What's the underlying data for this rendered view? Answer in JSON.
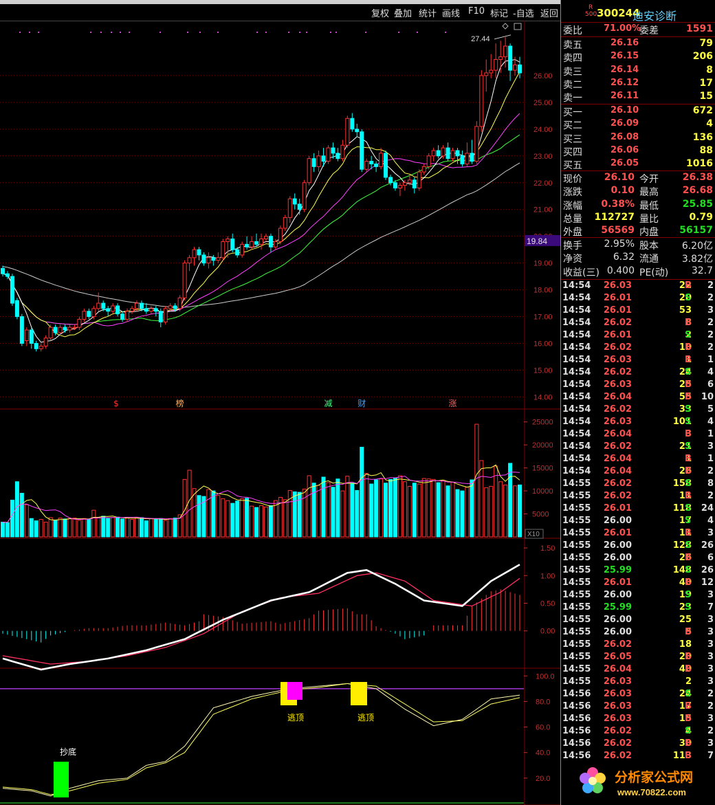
{
  "toolbar": {
    "buttons": [
      "复权",
      "叠加",
      "统计",
      "画线",
      "F10",
      "标记",
      "-自选",
      "返回"
    ]
  },
  "stock": {
    "badge_top": "R",
    "badge_bottom": "500",
    "code": "300244",
    "name": "迪安诊断"
  },
  "weibi": {
    "label1": "委比",
    "value1": "71.00%",
    "label2": "委差",
    "value2": "1591"
  },
  "asks": [
    {
      "label": "卖五",
      "price": "26.16",
      "vol": "79"
    },
    {
      "label": "卖四",
      "price": "26.15",
      "vol": "206"
    },
    {
      "label": "卖三",
      "price": "26.14",
      "vol": "8"
    },
    {
      "label": "卖二",
      "price": "26.12",
      "vol": "17"
    },
    {
      "label": "卖一",
      "price": "26.11",
      "vol": "15"
    }
  ],
  "bids": [
    {
      "label": "买一",
      "price": "26.10",
      "vol": "672"
    },
    {
      "label": "买二",
      "price": "26.09",
      "vol": "4"
    },
    {
      "label": "买三",
      "price": "26.08",
      "vol": "136"
    },
    {
      "label": "买四",
      "price": "26.06",
      "vol": "88"
    },
    {
      "label": "买五",
      "price": "26.05",
      "vol": "1016"
    }
  ],
  "quote": [
    {
      "l1": "现价",
      "v1": "26.10",
      "c1": "#ff5050",
      "l2": "今开",
      "v2": "26.38",
      "c2": "#ff5050"
    },
    {
      "l1": "涨跌",
      "v1": "0.10",
      "c1": "#ff5050",
      "l2": "最高",
      "v2": "26.68",
      "c2": "#ff5050"
    },
    {
      "l1": "涨幅",
      "v1": "0.38%",
      "c1": "#ff5050",
      "l2": "最低",
      "v2": "25.85",
      "c2": "#22dd22"
    },
    {
      "l1": "总量",
      "v1": "112727",
      "c1": "#ffff40",
      "l2": "量比",
      "v2": "0.79",
      "c2": "#ffff40"
    },
    {
      "l1": "外盘",
      "v1": "56569",
      "c1": "#ff5050",
      "l2": "内盘",
      "v2": "56157",
      "c2": "#22dd22"
    }
  ],
  "fundamentals": [
    {
      "l1": "换手",
      "v1": "2.95%",
      "l2": "股本",
      "v2": "6.20亿"
    },
    {
      "l1": "净资",
      "v1": "6.32",
      "l2": "流通",
      "v2": "3.82亿"
    },
    {
      "l1": "收益(三)",
      "v1": "0.400",
      "l2": "PE(动)",
      "v2": "32.7"
    }
  ],
  "ticks": [
    [
      "14:54",
      "26.03",
      "22",
      "B",
      "2"
    ],
    [
      "14:54",
      "26.01",
      "20",
      "S",
      "2"
    ],
    [
      "14:54",
      "26.01",
      "53",
      "",
      "3"
    ],
    [
      "14:54",
      "26.02",
      "8",
      "B",
      "2"
    ],
    [
      "14:54",
      "26.01",
      "2",
      "S",
      "2"
    ],
    [
      "14:54",
      "26.02",
      "10",
      "B",
      "2"
    ],
    [
      "14:54",
      "26.03",
      "1",
      "B",
      "1"
    ],
    [
      "14:54",
      "26.02",
      "24",
      "S",
      "4"
    ],
    [
      "14:54",
      "26.03",
      "25",
      "B",
      "6"
    ],
    [
      "14:54",
      "26.04",
      "55",
      "B",
      "10"
    ],
    [
      "14:54",
      "26.02",
      "33",
      "S",
      "5"
    ],
    [
      "14:54",
      "26.03",
      "101",
      "S",
      "4"
    ],
    [
      "14:54",
      "26.04",
      "3",
      "B",
      "1"
    ],
    [
      "14:54",
      "26.02",
      "21",
      "S",
      "3"
    ],
    [
      "14:54",
      "26.04",
      "1",
      "B",
      "1"
    ],
    [
      "14:54",
      "26.04",
      "26",
      "B",
      "2"
    ],
    [
      "14:55",
      "26.02",
      "158",
      "S",
      "8"
    ],
    [
      "14:55",
      "26.02",
      "11",
      "B",
      "2"
    ],
    [
      "14:55",
      "26.01",
      "118",
      "S",
      "24"
    ],
    [
      "14:55",
      "26.00",
      "17",
      "S",
      "4"
    ],
    [
      "14:55",
      "26.01",
      "11",
      "B",
      "3"
    ],
    [
      "14:55",
      "26.00",
      "128",
      "S",
      "26"
    ],
    [
      "14:55",
      "26.00",
      "26",
      "B",
      "6"
    ],
    [
      "14:55",
      "25.99",
      "148",
      "S",
      "26"
    ],
    [
      "14:55",
      "26.01",
      "40",
      "B",
      "12"
    ],
    [
      "14:55",
      "26.00",
      "19",
      "S",
      "3"
    ],
    [
      "14:55",
      "25.99",
      "23",
      "S",
      "7"
    ],
    [
      "14:55",
      "26.00",
      "25",
      "",
      "3"
    ],
    [
      "14:55",
      "26.00",
      "5",
      "B",
      "3"
    ],
    [
      "14:55",
      "26.02",
      "18",
      "",
      "3"
    ],
    [
      "14:55",
      "26.05",
      "20",
      "B",
      "3"
    ],
    [
      "14:55",
      "26.04",
      "40",
      "B",
      "3"
    ],
    [
      "14:55",
      "26.03",
      "2",
      "",
      "3"
    ],
    [
      "14:56",
      "26.03",
      "24",
      "S",
      "2"
    ],
    [
      "14:56",
      "26.03",
      "17",
      "B",
      "2"
    ],
    [
      "14:56",
      "26.03",
      "15",
      "B",
      "3"
    ],
    [
      "14:56",
      "26.02",
      "4",
      "S",
      "2"
    ],
    [
      "14:56",
      "26.02",
      "30",
      "B",
      "3"
    ],
    [
      "14:56",
      "26.02",
      "113",
      "B",
      "7"
    ]
  ],
  "colors": {
    "up": "#ff3232",
    "down": "#00ffff",
    "ma5": "#ffffff",
    "ma10": "#ffff50",
    "ma20": "#ff40ff",
    "ma30": "#40ff40",
    "ma60": "#cccccc",
    "grid": "#800000",
    "axis_text": "#c03030",
    "current_bg": "#3a0a7a"
  },
  "chart_data": [
    {
      "type": "candlestick",
      "title": "",
      "ylim": [
        13.6,
        28.0
      ],
      "yticks": [
        "26.00",
        "25.00",
        "24.00",
        "23.00",
        "22.00",
        "21.00",
        "20.00",
        "19.00",
        "18.00",
        "17.00",
        "16.00",
        "15.00",
        "14.00"
      ],
      "current_price_label": "19.84",
      "high_annotation": "27.44",
      "event_markers": [
        {
          "index": 24,
          "text": "$"
        },
        {
          "index": 37,
          "text": "榜"
        },
        {
          "index": 68,
          "text": "减"
        },
        {
          "index": 75,
          "text": "财"
        },
        {
          "index": 94,
          "text": "涨"
        }
      ],
      "candles": [
        [
          18.8,
          18.6,
          18.9,
          18.5
        ],
        [
          18.6,
          18.5,
          18.7,
          18.4
        ],
        [
          18.5,
          17.5,
          18.6,
          17.4
        ],
        [
          17.6,
          17.0,
          17.7,
          16.9
        ],
        [
          17.0,
          16.0,
          17.1,
          15.9
        ],
        [
          16.1,
          16.5,
          16.6,
          15.9
        ],
        [
          16.5,
          16.0,
          16.6,
          15.8
        ],
        [
          16.0,
          15.8,
          16.1,
          15.7
        ],
        [
          15.8,
          15.9,
          16.0,
          15.7
        ],
        [
          15.9,
          16.2,
          16.3,
          15.8
        ],
        [
          16.2,
          16.6,
          16.7,
          16.1
        ],
        [
          16.6,
          16.4,
          16.7,
          16.3
        ],
        [
          16.4,
          16.6,
          16.7,
          16.3
        ],
        [
          16.6,
          16.5,
          16.7,
          16.4
        ],
        [
          16.5,
          16.6,
          16.7,
          16.4
        ],
        [
          16.6,
          16.6,
          16.7,
          16.5
        ],
        [
          16.6,
          16.9,
          17.0,
          16.5
        ],
        [
          16.9,
          17.2,
          17.3,
          16.8
        ],
        [
          17.2,
          17.0,
          17.3,
          16.9
        ],
        [
          17.0,
          17.3,
          17.4,
          16.9
        ],
        [
          17.3,
          17.5,
          17.9,
          17.2
        ],
        [
          17.5,
          17.3,
          17.6,
          17.2
        ],
        [
          17.3,
          17.2,
          17.4,
          17.0
        ],
        [
          17.2,
          17.4,
          17.5,
          17.1
        ],
        [
          17.4,
          17.1,
          17.5,
          17.0
        ],
        [
          17.1,
          16.9,
          17.2,
          16.8
        ],
        [
          16.9,
          17.2,
          17.3,
          16.8
        ],
        [
          17.2,
          17.3,
          17.4,
          17.1
        ],
        [
          17.3,
          17.5,
          17.6,
          17.2
        ],
        [
          17.5,
          17.3,
          17.6,
          17.2
        ],
        [
          17.3,
          17.2,
          17.5,
          17.1
        ],
        [
          17.2,
          17.3,
          17.4,
          17.1
        ],
        [
          17.3,
          17.2,
          17.4,
          17.0
        ],
        [
          17.2,
          16.8,
          17.3,
          16.6
        ],
        [
          16.8,
          17.3,
          17.4,
          16.7
        ],
        [
          17.3,
          17.4,
          17.5,
          17.2
        ],
        [
          17.4,
          17.3,
          17.5,
          17.2
        ],
        [
          17.3,
          17.7,
          17.8,
          17.2
        ],
        [
          17.7,
          19.0,
          19.1,
          17.6
        ],
        [
          19.0,
          19.2,
          19.3,
          18.7
        ],
        [
          19.2,
          19.5,
          19.6,
          18.9
        ],
        [
          19.5,
          19.3,
          19.6,
          19.1
        ],
        [
          19.3,
          19.0,
          19.4,
          18.9
        ],
        [
          19.0,
          19.2,
          19.4,
          18.8
        ],
        [
          19.2,
          19.1,
          19.3,
          18.9
        ],
        [
          19.1,
          19.2,
          19.4,
          19.0
        ],
        [
          19.2,
          19.8,
          19.9,
          19.1
        ],
        [
          19.8,
          19.9,
          20.0,
          19.2
        ],
        [
          19.9,
          19.5,
          20.1,
          19.4
        ],
        [
          19.5,
          19.3,
          19.6,
          19.2
        ],
        [
          19.3,
          19.7,
          19.8,
          19.2
        ],
        [
          19.7,
          19.6,
          20.0,
          19.5
        ],
        [
          19.6,
          19.8,
          20.0,
          19.5
        ],
        [
          19.8,
          19.7,
          20.1,
          19.6
        ],
        [
          19.7,
          19.9,
          20.1,
          19.5
        ],
        [
          19.9,
          20.0,
          20.1,
          19.8
        ],
        [
          20.0,
          19.6,
          20.1,
          19.4
        ],
        [
          19.6,
          19.8,
          19.9,
          19.5
        ],
        [
          19.8,
          20.3,
          20.4,
          19.7
        ],
        [
          20.3,
          20.7,
          20.8,
          20.2
        ],
        [
          20.7,
          21.4,
          21.5,
          20.5
        ],
        [
          21.4,
          21.2,
          21.6,
          21.0
        ],
        [
          21.2,
          21.0,
          21.4,
          20.8
        ],
        [
          21.0,
          22.0,
          22.1,
          20.9
        ],
        [
          22.0,
          22.9,
          23.0,
          21.9
        ],
        [
          22.9,
          22.6,
          23.1,
          22.4
        ],
        [
          22.6,
          23.0,
          23.2,
          22.4
        ],
        [
          23.0,
          22.8,
          23.3,
          22.6
        ],
        [
          22.8,
          23.3,
          23.4,
          22.7
        ],
        [
          23.3,
          23.1,
          23.5,
          22.9
        ],
        [
          23.1,
          22.9,
          23.3,
          22.8
        ],
        [
          22.9,
          23.4,
          23.6,
          22.8
        ],
        [
          23.4,
          24.4,
          24.5,
          23.3
        ],
        [
          24.4,
          24.0,
          24.6,
          23.9
        ],
        [
          24.0,
          23.9,
          24.2,
          23.7
        ],
        [
          23.9,
          22.5,
          24.0,
          22.4
        ],
        [
          22.5,
          22.8,
          22.9,
          22.4
        ],
        [
          22.8,
          22.7,
          23.0,
          22.5
        ],
        [
          22.7,
          22.6,
          22.8,
          22.4
        ],
        [
          22.6,
          23.1,
          23.3,
          22.5
        ],
        [
          23.1,
          22.2,
          23.2,
          22.1
        ],
        [
          22.2,
          22.0,
          22.3,
          21.9
        ],
        [
          22.0,
          21.8,
          22.1,
          21.7
        ],
        [
          21.8,
          21.9,
          22.0,
          21.5
        ],
        [
          21.9,
          22.0,
          22.1,
          21.7
        ],
        [
          22.0,
          22.1,
          22.3,
          21.9
        ],
        [
          22.1,
          21.8,
          22.2,
          21.6
        ],
        [
          21.8,
          22.4,
          22.5,
          21.7
        ],
        [
          22.4,
          22.6,
          22.7,
          22.3
        ],
        [
          22.6,
          23.0,
          23.1,
          22.5
        ],
        [
          23.0,
          23.2,
          23.3,
          22.8
        ],
        [
          23.2,
          23.0,
          23.4,
          22.9
        ],
        [
          23.0,
          23.3,
          23.4,
          22.9
        ],
        [
          23.3,
          22.9,
          23.5,
          22.8
        ],
        [
          22.9,
          23.2,
          23.3,
          22.8
        ],
        [
          23.2,
          23.0,
          23.3,
          22.7
        ],
        [
          23.0,
          22.7,
          23.2,
          22.6
        ],
        [
          22.7,
          23.1,
          23.5,
          22.6
        ],
        [
          23.1,
          22.8,
          23.6,
          22.7
        ],
        [
          22.8,
          24.1,
          24.3,
          22.7
        ],
        [
          24.1,
          26.0,
          26.2,
          23.9
        ],
        [
          26.0,
          26.1,
          26.6,
          25.4
        ],
        [
          26.1,
          26.2,
          26.8,
          25.9
        ],
        [
          26.2,
          26.6,
          27.2,
          25.9
        ],
        [
          26.6,
          26.7,
          27.3,
          26.1
        ],
        [
          26.7,
          27.1,
          27.44,
          26.3
        ],
        [
          27.1,
          26.2,
          27.2,
          25.8
        ],
        [
          26.2,
          26.4,
          26.7,
          26.0
        ],
        [
          26.4,
          26.1,
          26.7,
          25.9
        ]
      ]
    },
    {
      "type": "bar",
      "title": "",
      "ylim": [
        0,
        27500
      ],
      "yticks": [
        "25000",
        "20000",
        "15000",
        "10000",
        "5000"
      ],
      "unit_label": "X10",
      "values": [
        3200,
        3100,
        8000,
        12000,
        9500,
        7000,
        4000,
        3500,
        3800,
        3200,
        4200,
        3600,
        4100,
        3900,
        4000,
        4100,
        3600,
        4000,
        3800,
        5800,
        4200,
        4500,
        4000,
        4200,
        4300,
        3900,
        4100,
        3800,
        4200,
        4200,
        3500,
        4000,
        3800,
        4000,
        3600,
        4000,
        4100,
        4800,
        12500,
        14500,
        10500,
        9000,
        8800,
        10300,
        10000,
        9000,
        8300,
        7900,
        7300,
        7800,
        8300,
        8400,
        6700,
        6400,
        6800,
        6500,
        6800,
        7900,
        8600,
        8100,
        10100,
        9800,
        9700,
        10400,
        13300,
        11700,
        11200,
        13000,
        11800,
        10800,
        12600,
        10000,
        13200,
        11700,
        10100,
        19500,
        13800,
        11500,
        12400,
        12600,
        11700,
        12500,
        12800,
        13300,
        12000,
        11000,
        11700,
        11500,
        12700,
        12600,
        12500,
        11800,
        12300,
        11100,
        11900,
        10300,
        10000,
        10800,
        12400,
        24500,
        16600,
        10700,
        11000,
        15400,
        12000,
        11300,
        16000,
        11100,
        11300
      ]
    },
    {
      "type": "line",
      "title": "",
      "ylim": [
        -0.65,
        1.65
      ],
      "yticks": [
        "1.50",
        "1.00",
        "0.50",
        "0.00"
      ],
      "series_note": "",
      "dif_points": [
        [
          0,
          -0.5
        ],
        [
          8,
          -0.7
        ],
        [
          14,
          -0.6
        ],
        [
          22,
          -0.5
        ],
        [
          30,
          -0.35
        ],
        [
          38,
          -0.15
        ],
        [
          46,
          0.2
        ],
        [
          56,
          0.55
        ],
        [
          64,
          0.7
        ],
        [
          72,
          1.05
        ],
        [
          76,
          1.1
        ],
        [
          82,
          0.85
        ],
        [
          88,
          0.55
        ],
        [
          96,
          0.45
        ],
        [
          102,
          0.9
        ],
        [
          108,
          1.2
        ]
      ],
      "dea_points": [
        [
          0,
          -0.45
        ],
        [
          10,
          -0.6
        ],
        [
          18,
          -0.55
        ],
        [
          26,
          -0.45
        ],
        [
          34,
          -0.3
        ],
        [
          42,
          -0.05
        ],
        [
          50,
          0.35
        ],
        [
          58,
          0.6
        ],
        [
          66,
          0.68
        ],
        [
          74,
          1.0
        ],
        [
          78,
          1.05
        ],
        [
          84,
          0.9
        ],
        [
          90,
          0.55
        ],
        [
          98,
          0.45
        ],
        [
          104,
          0.7
        ],
        [
          108,
          0.95
        ]
      ]
    },
    {
      "type": "line",
      "title": "",
      "ylim": [
        0,
        105
      ],
      "yticks": [
        "100.0",
        "80.0",
        "60.0",
        "40.0",
        "20.0"
      ],
      "signals": [
        {
          "index": 11,
          "text": "抄底"
        },
        {
          "index": 61,
          "text": "逃顶"
        },
        {
          "index": 78,
          "text": "逃顶"
        }
      ]
    }
  ],
  "watermark": {
    "site": "分析家公式网",
    "url": "www.70822.com"
  }
}
